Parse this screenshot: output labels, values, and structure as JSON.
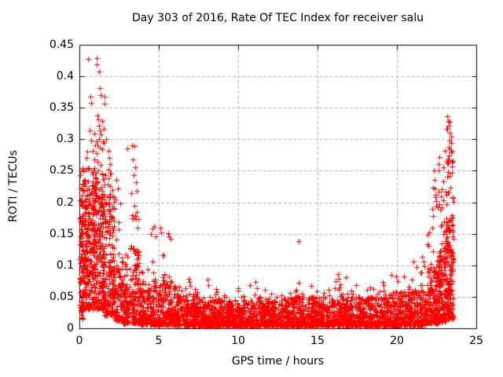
{
  "chart_data": {
    "type": "scatter",
    "title": "Day 303 of 2016, Rate Of TEC Index for receiver salu",
    "xlabel": "GPS time / hours",
    "ylabel": "ROTI / TECUs",
    "xlim": [
      0,
      25
    ],
    "ylim": [
      0,
      0.45
    ],
    "xticks": {
      "values": [
        0,
        5,
        10,
        15,
        20,
        25
      ],
      "labels": [
        "0",
        "5",
        "10",
        "15",
        "20",
        "25"
      ]
    },
    "yticks": {
      "values": [
        0,
        0.05,
        0.1,
        0.15,
        0.2,
        0.25,
        0.3,
        0.35,
        0.4,
        0.45
      ],
      "labels": [
        "0",
        "0.05",
        "0.1",
        "0.15",
        "0.2",
        "0.25",
        "0.3",
        "0.35",
        "0.4",
        "0.45"
      ]
    },
    "grid": true,
    "legend": "none",
    "marker": "plus",
    "marker_color": "#ff0000",
    "grid_color": "#a9a9a9",
    "axis_color": "#000000",
    "background": "#ffffff",
    "random_seed": 20161029,
    "notable_points": [
      [
        0.55,
        0.428
      ],
      [
        1.08,
        0.429
      ],
      [
        1.1,
        0.419
      ],
      [
        1.25,
        0.407
      ],
      [
        1.28,
        0.382
      ],
      [
        0.7,
        0.368
      ],
      [
        0.74,
        0.358
      ],
      [
        1.32,
        0.37
      ],
      [
        1.57,
        0.368
      ],
      [
        1.6,
        0.357
      ],
      [
        1.12,
        0.338
      ],
      [
        1.18,
        0.331
      ],
      [
        1.24,
        0.322
      ],
      [
        1.3,
        0.314
      ],
      [
        1.36,
        0.308
      ],
      [
        1.46,
        0.329
      ],
      [
        1.52,
        0.317
      ],
      [
        0.63,
        0.314
      ],
      [
        0.92,
        0.309
      ],
      [
        1.25,
        0.3
      ],
      [
        1.68,
        0.3
      ],
      [
        1.82,
        0.282
      ],
      [
        1.87,
        0.27
      ],
      [
        1.92,
        0.26
      ],
      [
        1.85,
        0.252
      ],
      [
        1.96,
        0.246
      ],
      [
        3.02,
        0.285
      ],
      [
        3.3,
        0.291
      ],
      [
        3.48,
        0.289
      ],
      [
        3.36,
        0.268
      ],
      [
        3.52,
        0.256
      ],
      [
        3.42,
        0.243
      ],
      [
        3.56,
        0.232
      ],
      [
        3.25,
        0.215
      ],
      [
        3.6,
        0.218
      ],
      [
        3.45,
        0.195
      ],
      [
        3.62,
        0.185
      ],
      [
        3.33,
        0.175
      ],
      [
        2.35,
        0.235
      ],
      [
        2.42,
        0.222
      ],
      [
        2.3,
        0.205
      ],
      [
        4.62,
        0.158
      ],
      [
        4.7,
        0.162
      ],
      [
        4.52,
        0.15
      ],
      [
        4.8,
        0.146
      ],
      [
        5.08,
        0.16
      ],
      [
        5.16,
        0.152
      ],
      [
        5.58,
        0.151
      ],
      [
        5.65,
        0.146
      ],
      [
        5.72,
        0.142
      ],
      [
        6.9,
        0.078
      ],
      [
        6.96,
        0.067
      ],
      [
        8.05,
        0.077
      ],
      [
        8.12,
        0.069
      ],
      [
        10.75,
        0.068
      ],
      [
        11.1,
        0.073
      ],
      [
        11.18,
        0.064
      ],
      [
        13.8,
        0.138
      ],
      [
        13.8,
        0.072
      ],
      [
        13.81,
        0.051
      ],
      [
        16.15,
        0.075
      ],
      [
        16.28,
        0.086
      ],
      [
        16.33,
        0.079
      ],
      [
        17.15,
        0.06
      ],
      [
        17.45,
        0.068
      ],
      [
        19.1,
        0.074
      ],
      [
        19.18,
        0.068
      ],
      [
        19.95,
        0.082
      ],
      [
        20.03,
        0.075
      ],
      [
        21.6,
        0.113
      ],
      [
        21.66,
        0.106
      ],
      [
        21.72,
        0.098
      ],
      [
        21.55,
        0.088
      ],
      [
        22.35,
        0.25
      ],
      [
        22.4,
        0.236
      ],
      [
        22.38,
        0.222
      ],
      [
        22.44,
        0.208
      ],
      [
        22.47,
        0.194
      ],
      [
        22.3,
        0.178
      ],
      [
        23.18,
        0.337
      ],
      [
        23.23,
        0.329
      ],
      [
        23.28,
        0.321
      ],
      [
        23.34,
        0.311
      ],
      [
        23.3,
        0.298
      ],
      [
        23.26,
        0.288
      ],
      [
        23.4,
        0.304
      ],
      [
        23.44,
        0.294
      ],
      [
        23.47,
        0.282
      ]
    ],
    "density_profile": [
      {
        "x0": 0.02,
        "x1": 0.28,
        "n": 110,
        "lo": 0.015,
        "hi": 0.255,
        "p": 1.15
      },
      {
        "x0": 0.28,
        "x1": 0.95,
        "n": 230,
        "lo": 0.03,
        "hi": 0.235,
        "p": 1.35,
        "tf": 0.06,
        "tmax": 0.3,
        "cols": [
          0.35,
          0.5,
          0.62,
          0.78,
          0.9
        ],
        "cw": 0.14
      },
      {
        "x0": 0.95,
        "x1": 1.55,
        "n": 200,
        "lo": 0.03,
        "hi": 0.24,
        "p": 1.3,
        "tf": 0.07,
        "tmax": 0.3,
        "cols": [
          1.0,
          1.12,
          1.28,
          1.42,
          1.52
        ],
        "cw": 0.14
      },
      {
        "x0": 1.55,
        "x1": 2.2,
        "n": 170,
        "lo": 0.02,
        "hi": 0.21,
        "p": 1.5,
        "tf": 0.05,
        "tmax": 0.26,
        "cols": [
          1.62,
          1.78,
          1.92,
          2.08,
          2.16
        ],
        "cw": 0.13
      },
      {
        "x0": 2.2,
        "x1": 2.75,
        "n": 95,
        "lo": 0.012,
        "hi": 0.12,
        "p": 1.8,
        "tf": 0.05,
        "tmax": 0.23
      },
      {
        "x0": 2.75,
        "x1": 3.1,
        "n": 80,
        "lo": 0.008,
        "hi": 0.1,
        "p": 1.9,
        "tf": 0.04,
        "tmax": 0.13
      },
      {
        "x0": 3.1,
        "x1": 3.8,
        "n": 130,
        "lo": 0.008,
        "hi": 0.13,
        "p": 2.0,
        "tf": 0.05,
        "tmax": 0.21,
        "cols": [
          3.2,
          3.35,
          3.5,
          3.65,
          3.75
        ],
        "cw": 0.12
      },
      {
        "x0": 3.8,
        "x1": 4.4,
        "n": 115,
        "lo": 0.006,
        "hi": 0.07,
        "p": 2.0,
        "tf": 0.04,
        "tmax": 0.095
      },
      {
        "x0": 4.4,
        "x1": 6.0,
        "n": 280,
        "lo": 0.006,
        "hi": 0.075,
        "p": 2.2,
        "tf": 0.04,
        "tmax": 0.13
      },
      {
        "x0": 6.0,
        "x1": 7.6,
        "n": 260,
        "lo": 0.005,
        "hi": 0.055,
        "p": 2.2,
        "tf": 0.03,
        "tmax": 0.08
      },
      {
        "x0": 7.6,
        "x1": 11.0,
        "n": 560,
        "lo": 0.004,
        "hi": 0.045,
        "p": 2.3,
        "tf": 0.025,
        "tmax": 0.068
      },
      {
        "x0": 11.0,
        "x1": 13.6,
        "n": 430,
        "lo": 0.004,
        "hi": 0.048,
        "p": 2.3,
        "tf": 0.02,
        "tmax": 0.062
      },
      {
        "x0": 13.6,
        "x1": 16.0,
        "n": 390,
        "lo": 0.004,
        "hi": 0.05,
        "p": 2.3,
        "tf": 0.02,
        "tmax": 0.068
      },
      {
        "x0": 16.0,
        "x1": 17.0,
        "n": 165,
        "lo": 0.005,
        "hi": 0.058,
        "p": 2.2,
        "tf": 0.03,
        "tmax": 0.082
      },
      {
        "x0": 17.0,
        "x1": 19.0,
        "n": 320,
        "lo": 0.004,
        "hi": 0.05,
        "p": 2.3,
        "tf": 0.02,
        "tmax": 0.065
      },
      {
        "x0": 19.0,
        "x1": 20.4,
        "n": 230,
        "lo": 0.005,
        "hi": 0.055,
        "p": 2.2,
        "tf": 0.03,
        "tmax": 0.085
      },
      {
        "x0": 20.4,
        "x1": 21.9,
        "n": 250,
        "lo": 0.005,
        "hi": 0.06,
        "p": 2.2,
        "tf": 0.04,
        "tmax": 0.11
      },
      {
        "x0": 21.9,
        "x1": 22.6,
        "n": 150,
        "lo": 0.008,
        "hi": 0.095,
        "p": 1.9,
        "tf": 0.1,
        "tmax": 0.24
      },
      {
        "x0": 22.6,
        "x1": 23.1,
        "n": 140,
        "lo": 0.01,
        "hi": 0.135,
        "p": 1.7,
        "tf": 0.15,
        "tmax": 0.295
      },
      {
        "x0": 23.1,
        "x1": 23.55,
        "n": 145,
        "lo": 0.015,
        "hi": 0.175,
        "p": 1.5,
        "tf": 0.2,
        "tmax": 0.33
      }
    ]
  }
}
